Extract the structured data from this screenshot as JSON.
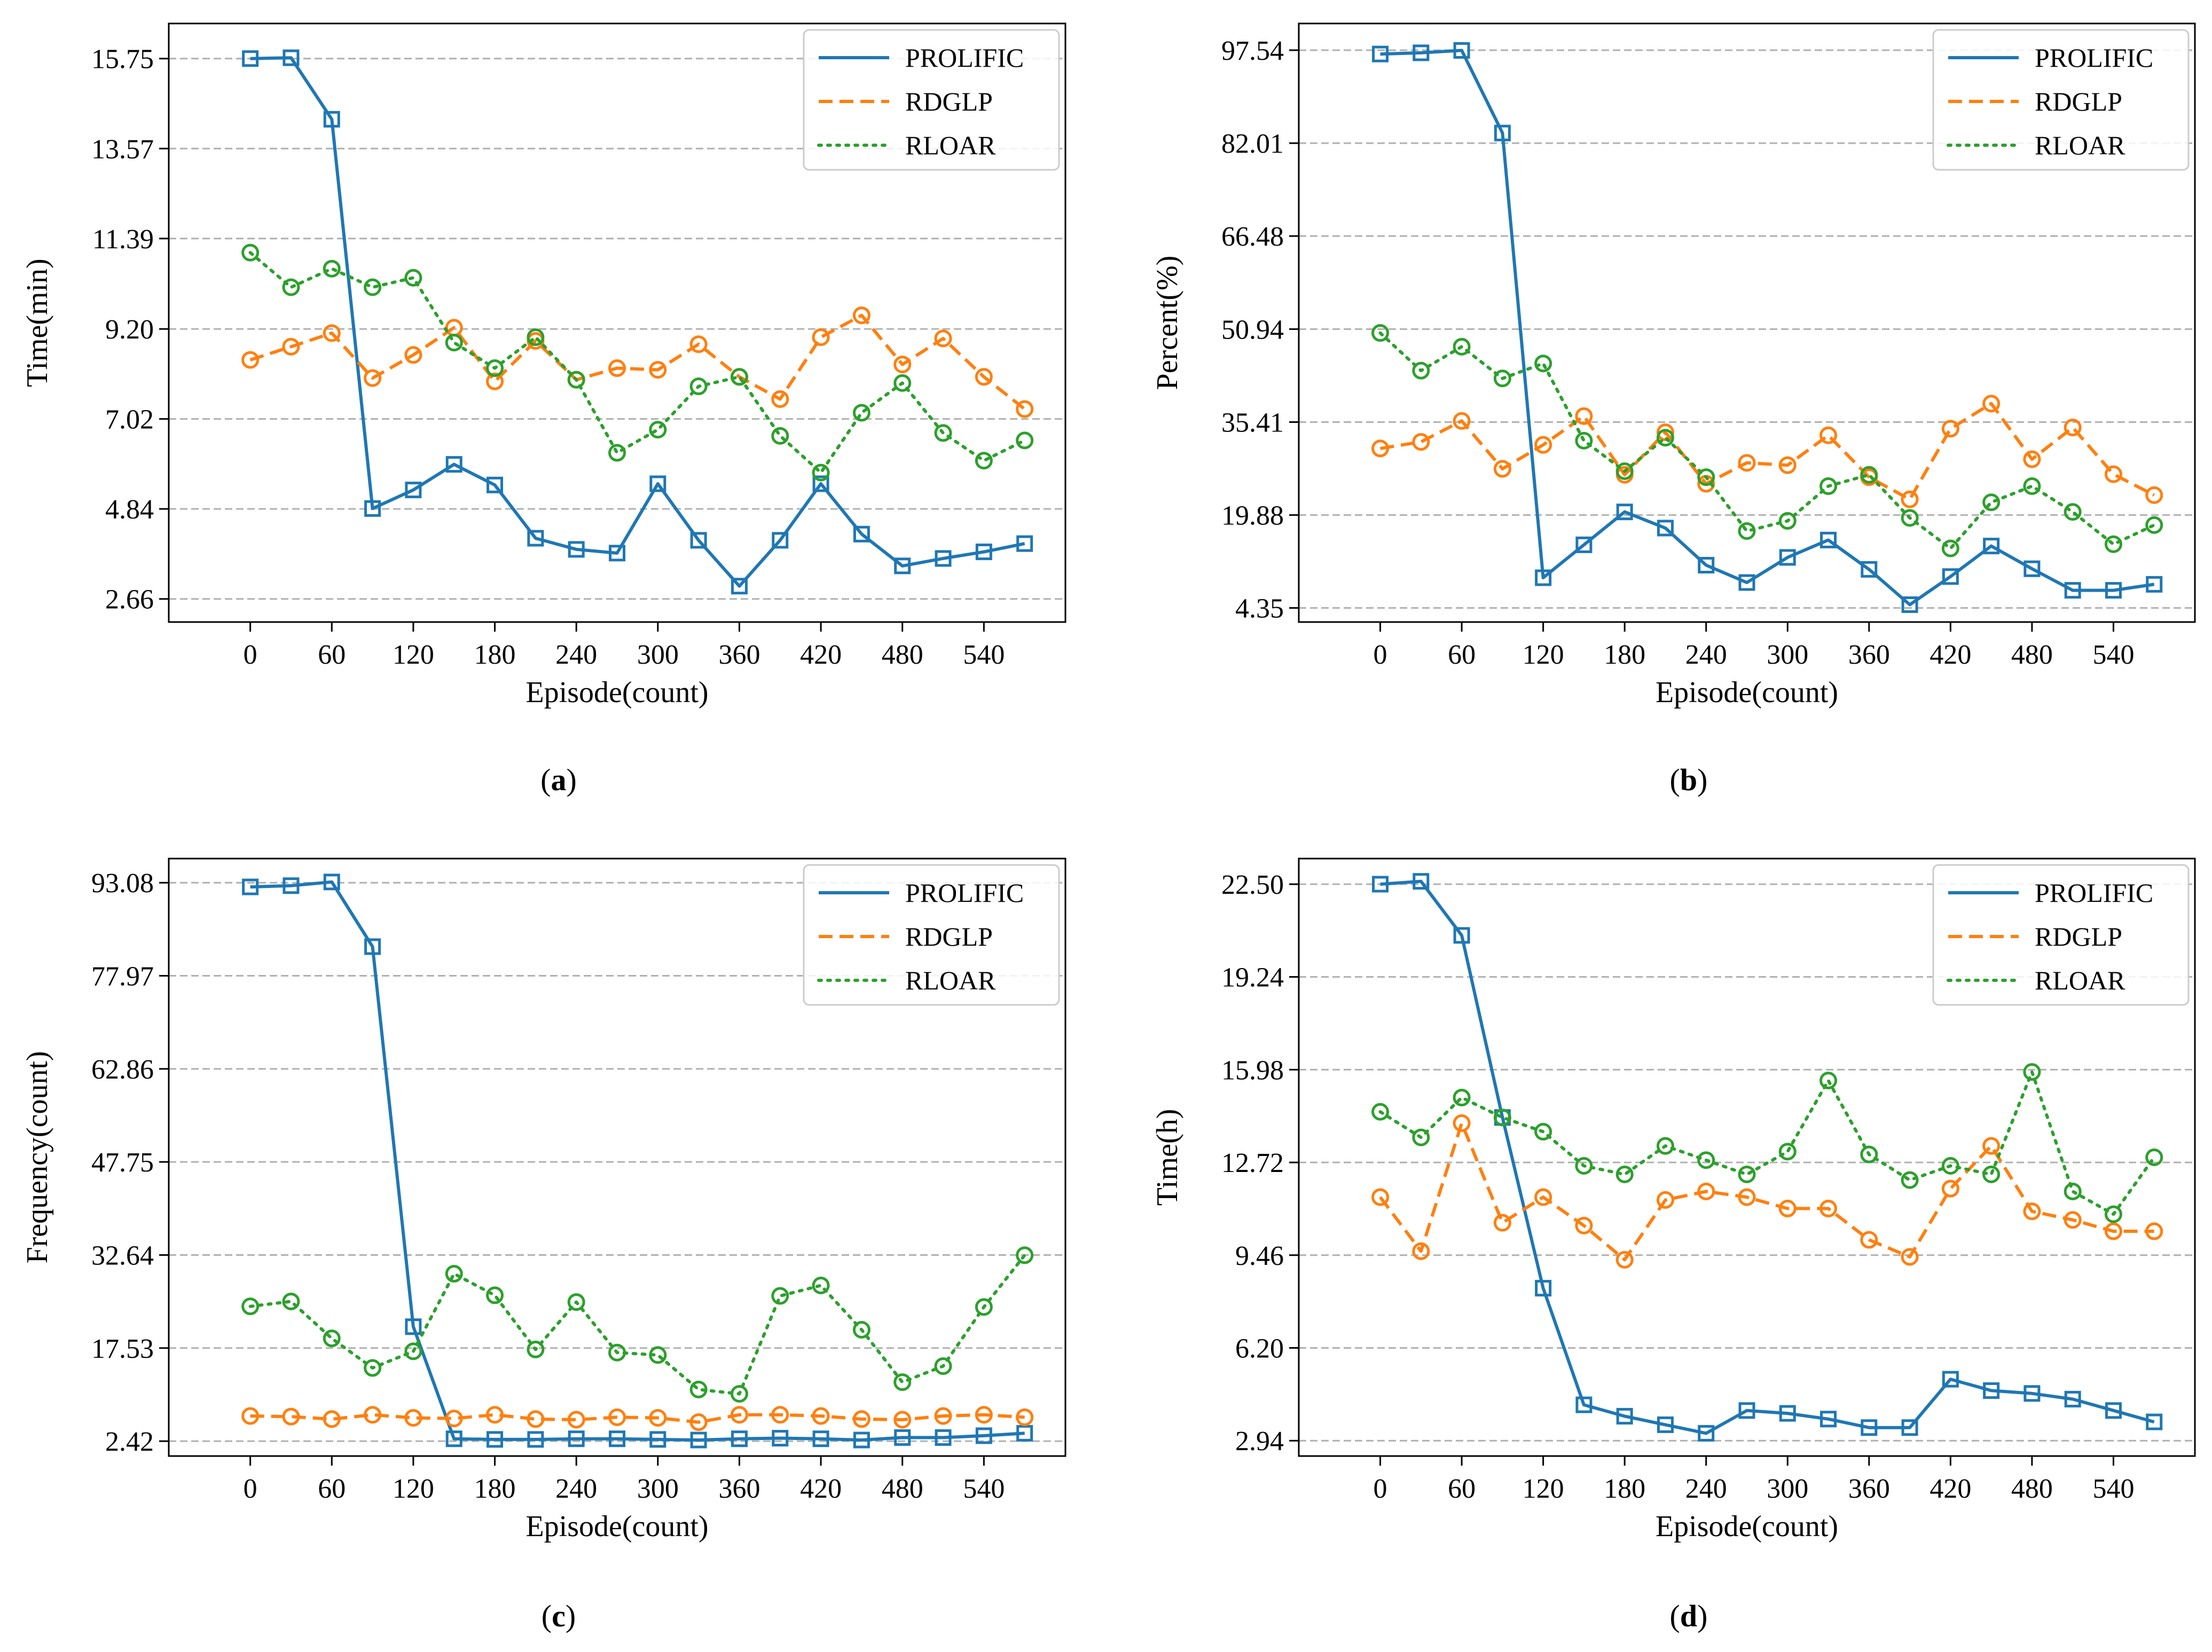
{
  "chart_data": [
    {
      "type": "line",
      "caption": "a",
      "xlabel": "Episode(count)",
      "ylabel": "Time(min)",
      "xlim": [
        -60,
        600
      ],
      "ylim": [
        2.1,
        16.6
      ],
      "xticks": [
        0,
        60,
        120,
        180,
        240,
        300,
        360,
        420,
        480,
        540
      ],
      "xtick_labels": [
        "0",
        "60",
        "120",
        "180",
        "240",
        "300",
        "360",
        "420",
        "480",
        "540"
      ],
      "yticks": [
        2.66,
        4.84,
        7.02,
        9.2,
        11.39,
        13.57,
        15.75
      ],
      "ytick_labels": [
        "2.66",
        "4.84",
        "7.02",
        "9.20",
        "11.39",
        "13.57",
        "15.75"
      ],
      "grid": "horizontal-dashed",
      "legend": "top-right",
      "x": [
        0,
        30,
        60,
        90,
        120,
        150,
        180,
        210,
        240,
        270,
        300,
        330,
        360,
        390,
        420,
        450,
        480,
        510,
        540,
        570
      ],
      "series": [
        {
          "name": "PROLIFIC",
          "color": "#1f77b4",
          "style": "solid",
          "marker": "square",
          "values": [
            15.75,
            15.77,
            14.28,
            4.85,
            5.3,
            5.92,
            5.42,
            4.13,
            3.86,
            3.77,
            5.45,
            4.08,
            2.97,
            4.08,
            5.45,
            4.23,
            3.46,
            3.64,
            3.8,
            4.0
          ]
        },
        {
          "name": "RDGLP",
          "color": "#ff7f0e",
          "style": "dashed",
          "marker": "circle",
          "values": [
            8.45,
            8.77,
            9.1,
            8.01,
            8.57,
            9.23,
            7.93,
            8.91,
            7.97,
            8.25,
            8.21,
            8.83,
            8.04,
            7.5,
            9.0,
            9.53,
            8.34,
            8.97,
            8.04,
            7.26
          ]
        },
        {
          "name": "RLOAR",
          "color": "#2ca02c",
          "style": "dotted",
          "marker": "circle",
          "values": [
            11.05,
            10.21,
            10.66,
            10.21,
            10.44,
            8.87,
            8.25,
            9.0,
            7.97,
            6.2,
            6.76,
            7.81,
            8.04,
            6.61,
            5.72,
            7.17,
            7.89,
            6.68,
            6.01,
            6.5
          ]
        }
      ]
    },
    {
      "type": "line",
      "caption": "b",
      "xlabel": "Episode(count)",
      "ylabel": "Percent(%)",
      "xlim": [
        -60,
        600
      ],
      "ylim": [
        2.0,
        102.0
      ],
      "xticks": [
        0,
        60,
        120,
        180,
        240,
        300,
        360,
        420,
        480,
        540
      ],
      "xtick_labels": [
        "0",
        "60",
        "120",
        "180",
        "240",
        "300",
        "360",
        "420",
        "480",
        "540"
      ],
      "yticks": [
        4.35,
        19.88,
        35.41,
        50.94,
        66.48,
        82.01,
        97.54
      ],
      "ytick_labels": [
        "4.35",
        "19.88",
        "35.41",
        "50.94",
        "66.48",
        "82.01",
        "97.54"
      ],
      "grid": "horizontal-dashed",
      "legend": "top-right",
      "x": [
        0,
        30,
        60,
        90,
        120,
        150,
        180,
        210,
        240,
        270,
        300,
        330,
        360,
        390,
        420,
        450,
        480,
        510,
        540,
        570
      ],
      "series": [
        {
          "name": "PROLIFIC",
          "color": "#1f77b4",
          "style": "solid",
          "marker": "square",
          "values": [
            96.9,
            97.1,
            97.5,
            83.7,
            9.4,
            14.9,
            20.4,
            17.7,
            11.5,
            8.6,
            12.8,
            15.7,
            10.8,
            4.9,
            9.6,
            14.7,
            10.9,
            7.3,
            7.3,
            8.3
          ]
        },
        {
          "name": "RDGLP",
          "color": "#ff7f0e",
          "style": "dashed",
          "marker": "circle",
          "values": [
            31.0,
            32.1,
            35.6,
            27.6,
            31.6,
            36.4,
            26.6,
            33.7,
            25.1,
            28.6,
            28.2,
            33.2,
            26.2,
            22.5,
            34.3,
            38.5,
            29.2,
            34.5,
            26.7,
            23.2
          ]
        },
        {
          "name": "RLOAR",
          "color": "#2ca02c",
          "style": "dotted",
          "marker": "circle",
          "values": [
            50.3,
            44.0,
            48.0,
            42.7,
            45.2,
            32.3,
            27.2,
            32.8,
            26.2,
            17.2,
            18.9,
            24.7,
            26.6,
            19.4,
            14.3,
            22.0,
            24.7,
            20.4,
            15.0,
            18.2
          ]
        }
      ]
    },
    {
      "type": "line",
      "caption": "c",
      "xlabel": "Episode(count)",
      "ylabel": "Frequency(count)",
      "xlim": [
        -60,
        600
      ],
      "ylim": [
        0.0,
        97.0
      ],
      "xticks": [
        0,
        60,
        120,
        180,
        240,
        300,
        360,
        420,
        480,
        540
      ],
      "xtick_labels": [
        "0",
        "60",
        "120",
        "180",
        "240",
        "300",
        "360",
        "420",
        "480",
        "540"
      ],
      "yticks": [
        2.42,
        17.53,
        32.64,
        47.75,
        62.86,
        77.97,
        93.08
      ],
      "ytick_labels": [
        "2.42",
        "17.53",
        "32.64",
        "47.75",
        "62.86",
        "77.97",
        "93.08"
      ],
      "grid": "horizontal-dashed",
      "legend": "top-right",
      "x": [
        0,
        30,
        60,
        90,
        120,
        150,
        180,
        210,
        240,
        270,
        300,
        330,
        360,
        390,
        420,
        450,
        480,
        510,
        540,
        570
      ],
      "series": [
        {
          "name": "PROLIFIC",
          "color": "#1f77b4",
          "style": "solid",
          "marker": "square",
          "values": [
            92.4,
            92.6,
            93.2,
            82.7,
            21.0,
            2.8,
            2.7,
            2.7,
            2.8,
            2.8,
            2.7,
            2.6,
            2.8,
            2.9,
            2.8,
            2.6,
            3.0,
            3.0,
            3.3,
            3.7
          ]
        },
        {
          "name": "RDGLP",
          "color": "#ff7f0e",
          "style": "dashed",
          "marker": "circle",
          "values": [
            6.5,
            6.4,
            6.0,
            6.7,
            6.2,
            6.1,
            6.7,
            6.0,
            5.9,
            6.3,
            6.2,
            5.5,
            6.7,
            6.7,
            6.5,
            6.0,
            5.9,
            6.5,
            6.7,
            6.3
          ]
        },
        {
          "name": "RLOAR",
          "color": "#2ca02c",
          "style": "dotted",
          "marker": "circle",
          "values": [
            24.3,
            25.1,
            19.1,
            14.3,
            17.0,
            29.6,
            26.1,
            17.3,
            25.0,
            16.8,
            16.4,
            10.8,
            10.1,
            26.0,
            27.7,
            20.5,
            12.0,
            14.6,
            24.2,
            32.6
          ]
        }
      ]
    },
    {
      "type": "line",
      "caption": "d",
      "xlabel": "Episode(count)",
      "ylabel": "Time(h)",
      "xlim": [
        -60,
        600
      ],
      "ylim": [
        2.4,
        23.4
      ],
      "xticks": [
        0,
        60,
        120,
        180,
        240,
        300,
        360,
        420,
        480,
        540
      ],
      "xtick_labels": [
        "0",
        "60",
        "120",
        "180",
        "240",
        "300",
        "360",
        "420",
        "480",
        "540"
      ],
      "yticks": [
        2.94,
        6.2,
        9.46,
        12.72,
        15.98,
        19.24,
        22.5
      ],
      "ytick_labels": [
        "2.94",
        "6.20",
        "9.46",
        "12.72",
        "15.98",
        "19.24",
        "22.50"
      ],
      "grid": "horizontal-dashed",
      "legend": "top-right",
      "x": [
        0,
        30,
        60,
        90,
        120,
        150,
        180,
        210,
        240,
        270,
        300,
        330,
        360,
        390,
        420,
        450,
        480,
        510,
        540,
        570
      ],
      "series": [
        {
          "name": "PROLIFIC",
          "color": "#1f77b4",
          "style": "solid",
          "marker": "square",
          "values": [
            22.5,
            22.6,
            20.7,
            14.3,
            8.3,
            4.2,
            3.8,
            3.5,
            3.2,
            4.0,
            3.9,
            3.7,
            3.4,
            3.4,
            5.1,
            4.7,
            4.6,
            4.4,
            4.0,
            3.6
          ]
        },
        {
          "name": "RDGLP",
          "color": "#ff7f0e",
          "style": "dashed",
          "marker": "circle",
          "values": [
            11.5,
            9.6,
            14.1,
            10.6,
            11.5,
            10.5,
            9.3,
            11.4,
            11.7,
            11.5,
            11.1,
            11.1,
            10.0,
            9.4,
            11.8,
            13.3,
            11.0,
            10.7,
            10.3,
            10.3
          ]
        },
        {
          "name": "RLOAR",
          "color": "#2ca02c",
          "style": "dotted",
          "marker": "circle",
          "values": [
            14.5,
            13.6,
            15.0,
            14.3,
            13.8,
            12.6,
            12.3,
            13.3,
            12.8,
            12.3,
            13.1,
            15.6,
            13.0,
            12.1,
            12.6,
            12.3,
            15.9,
            11.7,
            10.9,
            12.9
          ]
        }
      ]
    }
  ]
}
